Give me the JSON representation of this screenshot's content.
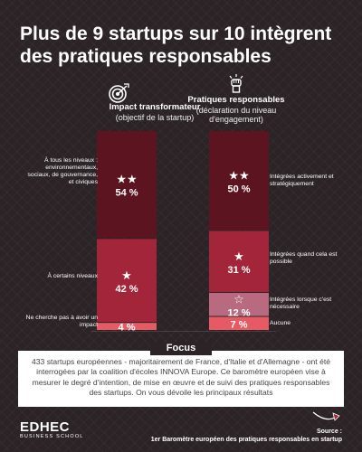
{
  "title": "Plus de 9 startups sur 10 intègrent des pratiques responsables",
  "colors": {
    "background": "#2b2326",
    "level_high": "#5c1420",
    "level_mid": "#a3253a",
    "level_low": "#b86a80",
    "level_none": "#e85a63"
  },
  "chart_data": {
    "type": "bar",
    "stacked": true,
    "categories": [
      "Impact transformateur",
      "Pratiques responsables"
    ],
    "columns": [
      {
        "heading": "Impact transformateur",
        "subheading": "(objectif de la startup)",
        "icon": "target-icon",
        "segments": [
          {
            "label": "À tous les niveaux : environnementaux, sociaux, de gouvernance, et civiques",
            "value": 54,
            "display": "54 %",
            "stars": "★★",
            "color": "#5c1420"
          },
          {
            "label": "À certains niveaux",
            "value": 42,
            "display": "42 %",
            "stars": "★",
            "color": "#a3253a"
          },
          {
            "label": "Ne cherche pas à avoir un impact",
            "value": 4,
            "display": "4 %",
            "stars": "",
            "color": "#e85a63"
          }
        ]
      },
      {
        "heading": "Pratiques responsables",
        "subheading": "(déclaration du niveau d'engagement)",
        "icon": "raised-fist-icon",
        "segments": [
          {
            "label": "Intégrées activement et stratégiquement",
            "value": 50,
            "display": "50 %",
            "stars": "★★",
            "color": "#5c1420"
          },
          {
            "label": "Intégrées quand cela est possible",
            "value": 31,
            "display": "31 %",
            "stars": "★",
            "color": "#a3253a"
          },
          {
            "label": "Intégrées lorsque c'est nécessaire",
            "value": 12,
            "display": "12 %",
            "stars": "☆",
            "color": "#b86a80"
          },
          {
            "label": "Aucune",
            "value": 7,
            "display": "7 %",
            "stars": "",
            "color": "#e85a63"
          }
        ]
      }
    ]
  },
  "focus": {
    "tag": "Focus",
    "text": "433 startups européennes - majoritairement de France, d'Italie et d'Allemagne - ont été interrogées par la coalition d'écoles INNOVA Europe. Ce baromètre européen vise à mesurer le degré d'intention, de mise en œuvre et de suivi des pratiques responsables des startups. On vous dévoile les principaux résultats"
  },
  "footer": {
    "logo_main": "EDHEC",
    "logo_sub": "BUSINESS SCHOOL",
    "source_label": "Source :",
    "source_text": "1er Baromètre européen des pratiques responsables en startup"
  }
}
